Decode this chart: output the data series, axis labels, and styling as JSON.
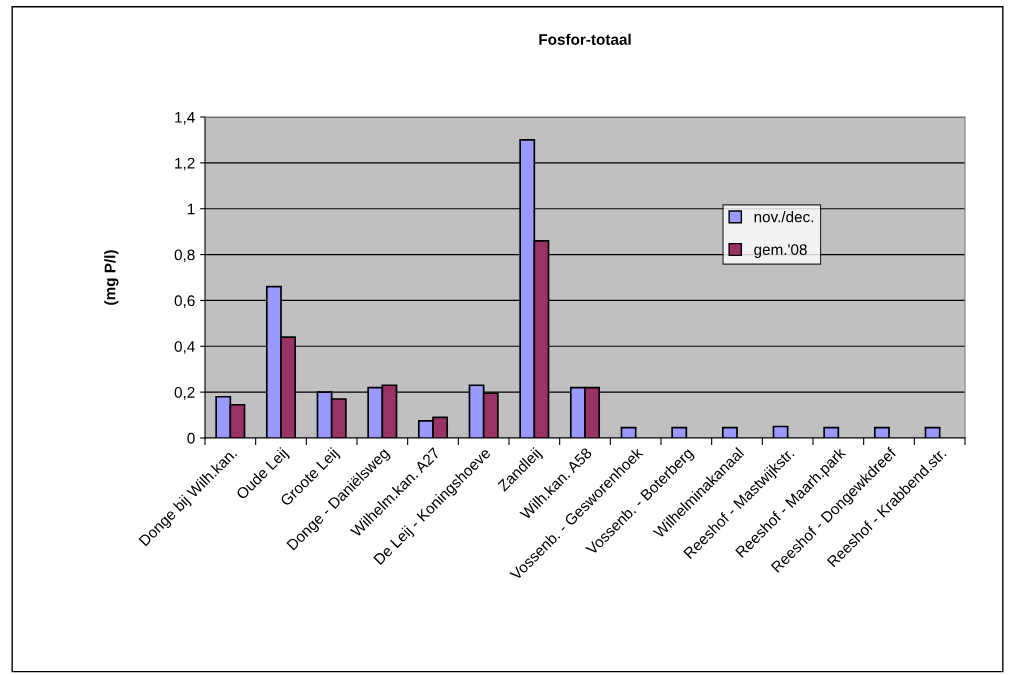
{
  "chart_data": {
    "type": "bar",
    "title": "Fosfor-totaal",
    "ylabel": "(mg P/l)",
    "categories": [
      "Donge bij Wilh.kan.",
      "Oude Leij",
      "Groote Leij",
      "Donge - Daniëlsweg",
      "Wilhelm.kan. A27",
      "De Leij - Koningshoeve",
      "Zandleij",
      "Wilh.kan. A58",
      "Vossenb. - Gesworenhoek",
      "Vossenb. - Boterberg",
      "Wilhelminakanaal",
      "Reeshof - Mastwijkstr.",
      "Reeshof - Maarh.park",
      "Reeshof - Dongewkdreef",
      "Reeshof - Krabbend.str."
    ],
    "series": [
      {
        "name": "nov./dec.",
        "color": "#9999ff",
        "values": [
          0.18,
          0.66,
          0.2,
          0.22,
          0.075,
          0.23,
          1.3,
          0.22,
          0.045,
          0.045,
          0.045,
          0.05,
          0.045,
          0.045,
          0.045
        ]
      },
      {
        "name": "gem.'08",
        "color": "#993366",
        "values": [
          0.145,
          0.44,
          0.17,
          0.23,
          0.09,
          0.195,
          0.86,
          0.22,
          null,
          null,
          null,
          null,
          null,
          null,
          null
        ]
      }
    ],
    "ylim": [
      0,
      1.4
    ],
    "yticks": [
      0,
      {
        "value": 0.2,
        "label": "0,2"
      },
      {
        "value": 0.4,
        "label": "0,4"
      },
      {
        "value": 0.6,
        "label": "0,6"
      },
      {
        "value": 0.8,
        "label": "0,8"
      },
      1,
      {
        "value": 1.2,
        "label": "1,2"
      },
      {
        "value": 1.4,
        "label": "1,4"
      }
    ],
    "grid": "y",
    "legend": "top right"
  }
}
